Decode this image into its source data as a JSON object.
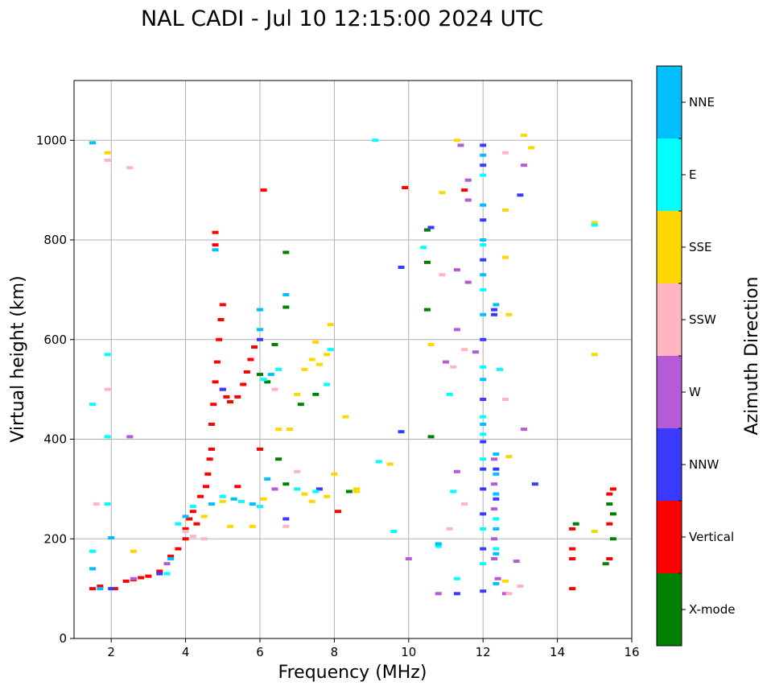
{
  "chart_data": {
    "type": "scatter",
    "title": "NAL CADI - Jul 10 12:15:00 2024 UTC",
    "xlabel": "Frequency (MHz)",
    "ylabel": "Virtual height (km)",
    "xlim": [
      1,
      16
    ],
    "ylim": [
      0,
      1120
    ],
    "xticks": [
      2,
      4,
      6,
      8,
      10,
      12,
      14,
      16
    ],
    "yticks": [
      0,
      200,
      400,
      600,
      800,
      1000
    ],
    "grid": true,
    "colorbar": {
      "label": "Azimuth Direction",
      "placement": "right",
      "categories": [
        {
          "name": "X-mode",
          "color": "#008000"
        },
        {
          "name": "Vertical",
          "color": "#ff0000"
        },
        {
          "name": "NNW",
          "color": "#3a3aff"
        },
        {
          "name": "W",
          "color": "#b65bd6"
        },
        {
          "name": "SSW",
          "color": "#ffb6c1"
        },
        {
          "name": "SSE",
          "color": "#ffd700"
        },
        {
          "name": "E",
          "color": "#00ffff"
        },
        {
          "name": "NNE",
          "color": "#00bfff"
        }
      ]
    },
    "series": [
      {
        "name": "Vertical",
        "points": [
          [
            1.5,
            100
          ],
          [
            1.7,
            105
          ],
          [
            2.1,
            100
          ],
          [
            2.4,
            115
          ],
          [
            2.6,
            118
          ],
          [
            2.8,
            122
          ],
          [
            3.0,
            125
          ],
          [
            3.3,
            135
          ],
          [
            3.6,
            165
          ],
          [
            3.8,
            180
          ],
          [
            4.0,
            200
          ],
          [
            4.0,
            220
          ],
          [
            4.1,
            240
          ],
          [
            4.2,
            255
          ],
          [
            4.3,
            230
          ],
          [
            4.4,
            285
          ],
          [
            4.55,
            305
          ],
          [
            4.6,
            330
          ],
          [
            4.65,
            360
          ],
          [
            4.7,
            380
          ],
          [
            4.7,
            430
          ],
          [
            4.75,
            470
          ],
          [
            4.8,
            515
          ],
          [
            4.85,
            555
          ],
          [
            4.9,
            600
          ],
          [
            4.95,
            640
          ],
          [
            5.0,
            500
          ],
          [
            5.1,
            485
          ],
          [
            5.2,
            475
          ],
          [
            5.4,
            485
          ],
          [
            5.55,
            510
          ],
          [
            5.65,
            535
          ],
          [
            5.75,
            560
          ],
          [
            5.85,
            585
          ],
          [
            6.0,
            380
          ],
          [
            5.4,
            305
          ],
          [
            4.8,
            790
          ],
          [
            4.8,
            815
          ],
          [
            5.0,
            670
          ],
          [
            6.1,
            900
          ],
          [
            9.9,
            905
          ],
          [
            11.5,
            900
          ],
          [
            14.4,
            100
          ],
          [
            14.4,
            180
          ],
          [
            14.4,
            160
          ],
          [
            14.4,
            220
          ],
          [
            15.4,
            160
          ],
          [
            15.4,
            290
          ],
          [
            15.4,
            230
          ],
          [
            15.5,
            300
          ],
          [
            8.1,
            255
          ]
        ]
      },
      {
        "name": "X-mode",
        "points": [
          [
            6.0,
            530
          ],
          [
            6.2,
            515
          ],
          [
            6.4,
            590
          ],
          [
            6.7,
            775
          ],
          [
            6.7,
            665
          ],
          [
            6.5,
            360
          ],
          [
            6.7,
            310
          ],
          [
            8.4,
            295
          ],
          [
            7.1,
            470
          ],
          [
            7.5,
            490
          ],
          [
            10.5,
            820
          ],
          [
            10.5,
            660
          ],
          [
            10.5,
            755
          ],
          [
            10.6,
            405
          ],
          [
            14.5,
            230
          ],
          [
            15.3,
            150
          ],
          [
            15.5,
            200
          ],
          [
            15.5,
            250
          ],
          [
            15.4,
            270
          ]
        ]
      },
      {
        "name": "NNW",
        "points": [
          [
            2.0,
            100
          ],
          [
            3.3,
            130
          ],
          [
            5.0,
            500
          ],
          [
            6.0,
            600
          ],
          [
            10.6,
            825
          ],
          [
            9.8,
            745
          ],
          [
            12.0,
            990
          ],
          [
            12.0,
            950
          ],
          [
            12.0,
            840
          ],
          [
            12.0,
            760
          ],
          [
            12.0,
            600
          ],
          [
            12.0,
            480
          ],
          [
            12.0,
            395
          ],
          [
            12.0,
            340
          ],
          [
            12.0,
            300
          ],
          [
            12.0,
            250
          ],
          [
            12.0,
            180
          ],
          [
            12.0,
            95
          ],
          [
            12.3,
            660
          ],
          [
            12.3,
            650
          ],
          [
            12.35,
            340
          ],
          [
            12.35,
            280
          ],
          [
            13.0,
            890
          ],
          [
            13.4,
            310
          ],
          [
            11.3,
            90
          ],
          [
            9.8,
            415
          ],
          [
            6.7,
            240
          ],
          [
            7.6,
            300
          ]
        ]
      },
      {
        "name": "W",
        "points": [
          [
            2.5,
            405
          ],
          [
            2.6,
            120
          ],
          [
            3.5,
            150
          ],
          [
            11.4,
            990
          ],
          [
            11.6,
            920
          ],
          [
            11.6,
            880
          ],
          [
            11.3,
            740
          ],
          [
            11.3,
            620
          ],
          [
            11.6,
            715
          ],
          [
            11.8,
            575
          ],
          [
            11.0,
            555
          ],
          [
            11.3,
            335
          ],
          [
            12.3,
            360
          ],
          [
            12.3,
            310
          ],
          [
            12.3,
            260
          ],
          [
            12.3,
            200
          ],
          [
            12.3,
            160
          ],
          [
            12.4,
            120
          ],
          [
            12.6,
            90
          ],
          [
            13.1,
            950
          ],
          [
            13.1,
            420
          ],
          [
            12.9,
            155
          ],
          [
            10.8,
            90
          ],
          [
            10.0,
            160
          ],
          [
            6.4,
            300
          ]
        ]
      },
      {
        "name": "SSW",
        "points": [
          [
            1.6,
            270
          ],
          [
            1.9,
            500
          ],
          [
            1.9,
            960
          ],
          [
            2.5,
            945
          ],
          [
            4.0,
            215
          ],
          [
            4.2,
            205
          ],
          [
            4.5,
            200
          ],
          [
            6.7,
            225
          ],
          [
            7.0,
            335
          ],
          [
            6.4,
            500
          ],
          [
            12.6,
            480
          ],
          [
            12.6,
            975
          ],
          [
            11.2,
            545
          ],
          [
            11.5,
            580
          ],
          [
            11.1,
            220
          ],
          [
            11.5,
            270
          ],
          [
            13.0,
            105
          ],
          [
            12.7,
            90
          ],
          [
            10.9,
            730
          ]
        ]
      },
      {
        "name": "SSE",
        "points": [
          [
            1.9,
            975
          ],
          [
            2.6,
            175
          ],
          [
            4.5,
            245
          ],
          [
            5.0,
            275
          ],
          [
            5.2,
            225
          ],
          [
            5.8,
            225
          ],
          [
            6.1,
            280
          ],
          [
            6.5,
            420
          ],
          [
            6.8,
            420
          ],
          [
            7.0,
            490
          ],
          [
            7.2,
            540
          ],
          [
            7.4,
            560
          ],
          [
            7.5,
            595
          ],
          [
            7.6,
            550
          ],
          [
            7.8,
            570
          ],
          [
            7.9,
            630
          ],
          [
            7.2,
            290
          ],
          [
            7.4,
            275
          ],
          [
            7.8,
            285
          ],
          [
            8.0,
            330
          ],
          [
            8.6,
            295
          ],
          [
            8.3,
            445
          ],
          [
            9.5,
            350
          ],
          [
            10.9,
            895
          ],
          [
            10.6,
            590
          ],
          [
            11.3,
            1000
          ],
          [
            12.6,
            860
          ],
          [
            12.6,
            765
          ],
          [
            12.7,
            650
          ],
          [
            12.7,
            365
          ],
          [
            13.1,
            1010
          ],
          [
            13.3,
            985
          ],
          [
            15.0,
            835
          ],
          [
            15.0,
            570
          ],
          [
            15.0,
            215
          ],
          [
            12.6,
            115
          ],
          [
            8.6,
            300
          ]
        ]
      },
      {
        "name": "E",
        "points": [
          [
            1.5,
            175
          ],
          [
            1.5,
            470
          ],
          [
            1.9,
            570
          ],
          [
            1.9,
            270
          ],
          [
            1.9,
            405
          ],
          [
            3.5,
            130
          ],
          [
            3.8,
            230
          ],
          [
            4.2,
            265
          ],
          [
            5.0,
            285
          ],
          [
            5.5,
            275
          ],
          [
            6.0,
            265
          ],
          [
            6.1,
            520
          ],
          [
            6.5,
            540
          ],
          [
            7.0,
            300
          ],
          [
            7.5,
            295
          ],
          [
            7.8,
            510
          ],
          [
            7.9,
            580
          ],
          [
            9.2,
            355
          ],
          [
            9.6,
            215
          ],
          [
            10.4,
            785
          ],
          [
            11.1,
            490
          ],
          [
            11.2,
            295
          ],
          [
            11.3,
            120
          ],
          [
            10.8,
            185
          ],
          [
            12.0,
            930
          ],
          [
            12.0,
            790
          ],
          [
            12.0,
            700
          ],
          [
            12.0,
            545
          ],
          [
            12.0,
            445
          ],
          [
            12.0,
            410
          ],
          [
            12.0,
            360
          ],
          [
            12.0,
            220
          ],
          [
            12.0,
            150
          ],
          [
            12.35,
            240
          ],
          [
            12.35,
            180
          ],
          [
            12.45,
            540
          ],
          [
            15.0,
            830
          ],
          [
            9.1,
            1000
          ]
        ]
      },
      {
        "name": "NNE",
        "points": [
          [
            1.5,
            995
          ],
          [
            1.5,
            140
          ],
          [
            1.7,
            100
          ],
          [
            2.0,
            202
          ],
          [
            3.6,
            160
          ],
          [
            4.0,
            245
          ],
          [
            4.7,
            270
          ],
          [
            4.8,
            780
          ],
          [
            5.3,
            280
          ],
          [
            5.8,
            270
          ],
          [
            6.0,
            620
          ],
          [
            6.0,
            660
          ],
          [
            6.3,
            530
          ],
          [
            6.7,
            690
          ],
          [
            6.2,
            320
          ],
          [
            12.0,
            970
          ],
          [
            12.0,
            870
          ],
          [
            12.0,
            800
          ],
          [
            12.0,
            730
          ],
          [
            12.0,
            650
          ],
          [
            12.0,
            520
          ],
          [
            12.0,
            430
          ],
          [
            12.35,
            370
          ],
          [
            12.35,
            330
          ],
          [
            12.35,
            290
          ],
          [
            12.35,
            220
          ],
          [
            12.35,
            170
          ],
          [
            12.35,
            110
          ],
          [
            12.35,
            670
          ],
          [
            10.8,
            190
          ]
        ]
      }
    ]
  }
}
